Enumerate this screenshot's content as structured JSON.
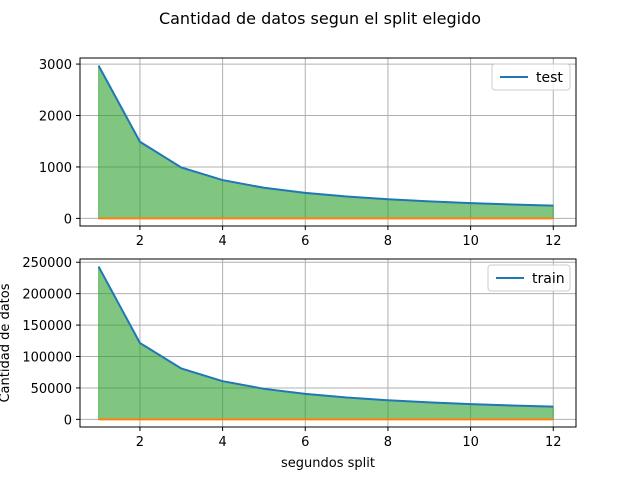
{
  "figure": {
    "suptitle": "Cantidad de datos segun el split elegido",
    "xlabel": "segundos split",
    "ylabel": "Cantidad de datos"
  },
  "colors": {
    "line": "#1f77b4",
    "baseline": "#ff7f0e",
    "fill": "#2ca02c",
    "grid": "#b0b0b0"
  },
  "chart_data": [
    {
      "type": "area",
      "title": "",
      "xlabel": "",
      "ylabel": "",
      "x": [
        1,
        2,
        3,
        4,
        5,
        6,
        7,
        8,
        9,
        10,
        11,
        12
      ],
      "series": [
        {
          "name": "test",
          "values": [
            2970,
            1490,
            990,
            745,
            595,
            495,
            425,
            372,
            330,
            297,
            270,
            248
          ]
        },
        {
          "name": "",
          "values": [
            0,
            0,
            0,
            0,
            0,
            0,
            0,
            0,
            0,
            0,
            0,
            0
          ]
        }
      ],
      "xlim": [
        0.55,
        12.55
      ],
      "ylim": [
        -148,
        3118
      ],
      "xticks": [
        2,
        4,
        6,
        8,
        10,
        12
      ],
      "xtick_labels": [
        "2",
        "4",
        "6",
        "8",
        "10",
        "12"
      ],
      "yticks": [
        0,
        1000,
        2000,
        3000
      ],
      "ytick_labels": [
        "0",
        "1000",
        "2000",
        "3000"
      ],
      "show_x_ticklabels": true,
      "grid": true,
      "legend": "top-right"
    },
    {
      "type": "area",
      "title": "",
      "xlabel": "segundos split",
      "ylabel": "Cantidad de datos",
      "x": [
        1,
        2,
        3,
        4,
        5,
        6,
        7,
        8,
        9,
        10,
        11,
        12
      ],
      "series": [
        {
          "name": "train",
          "values": [
            243000,
            121500,
            81000,
            60750,
            48600,
            40500,
            34700,
            30375,
            27000,
            24300,
            22100,
            20250
          ]
        },
        {
          "name": "",
          "values": [
            0,
            0,
            0,
            0,
            0,
            0,
            0,
            0,
            0,
            0,
            0,
            0
          ]
        }
      ],
      "xlim": [
        0.55,
        12.55
      ],
      "ylim": [
        -12150,
        255150
      ],
      "xticks": [
        2,
        4,
        6,
        8,
        10,
        12
      ],
      "xtick_labels": [
        "2",
        "4",
        "6",
        "8",
        "10",
        "12"
      ],
      "yticks": [
        0,
        50000,
        100000,
        150000,
        200000,
        250000
      ],
      "ytick_labels": [
        "0",
        "50000",
        "100000",
        "150000",
        "200000",
        "250000"
      ],
      "show_x_ticklabels": true,
      "grid": true,
      "legend": "top-right"
    }
  ]
}
